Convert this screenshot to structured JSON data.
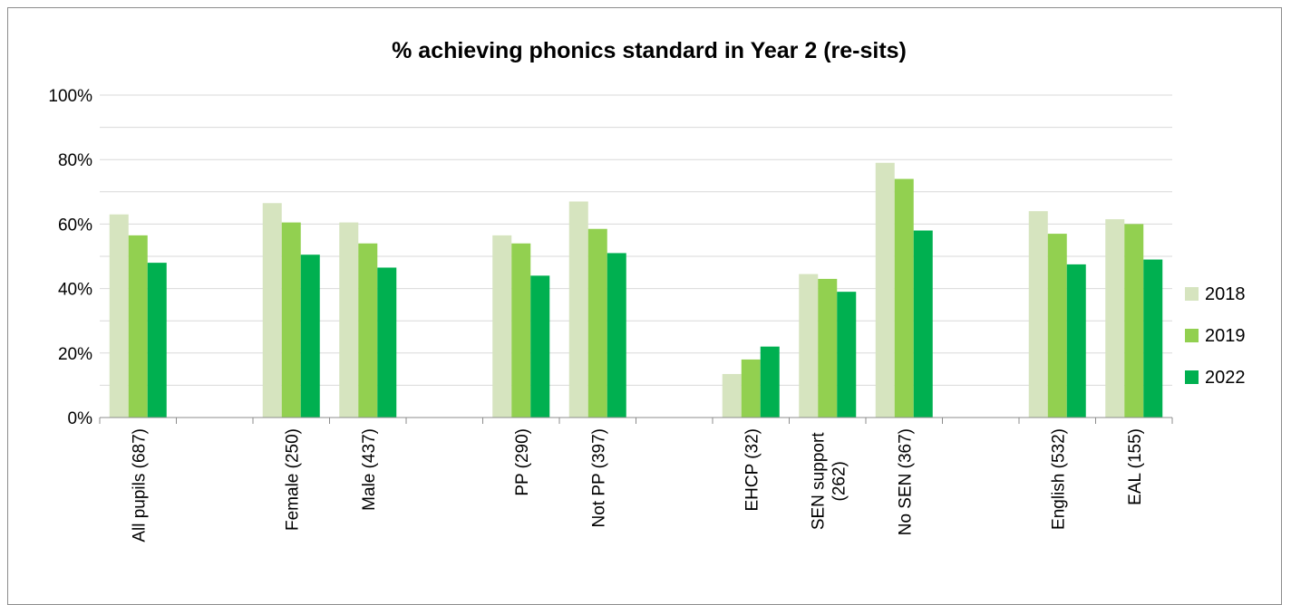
{
  "chart_data": {
    "type": "bar",
    "title": "% achieving phonics standard in Year 2 (re-sits)",
    "xlabel": "",
    "ylabel": "",
    "ylim": [
      0,
      100
    ],
    "yticks": [
      "0%",
      "20%",
      "40%",
      "60%",
      "80%",
      "100%"
    ],
    "grid": true,
    "legend_position": "right",
    "categories": [
      "All pupils (687)",
      "",
      "Female (250)",
      "Male (437)",
      "",
      "PP (290)",
      "Not PP (397)",
      "",
      "EHCP (32)",
      "SEN support\n(262)",
      "No SEN (367)",
      "",
      "English (532)",
      "EAL (155)"
    ],
    "series": [
      {
        "name": "2018",
        "color": "#d6e4bf",
        "values": [
          63,
          null,
          66.5,
          60.5,
          null,
          56.5,
          67,
          null,
          13.5,
          44.5,
          79,
          null,
          64,
          61.5
        ]
      },
      {
        "name": "2019",
        "color": "#92d050",
        "values": [
          56.5,
          null,
          60.5,
          54,
          null,
          54,
          58.5,
          null,
          18,
          43,
          74,
          null,
          57,
          60
        ]
      },
      {
        "name": "2022",
        "color": "#00b050",
        "values": [
          48,
          null,
          50.5,
          46.5,
          null,
          44,
          51,
          null,
          22,
          39,
          58,
          null,
          47.5,
          49
        ]
      }
    ]
  }
}
